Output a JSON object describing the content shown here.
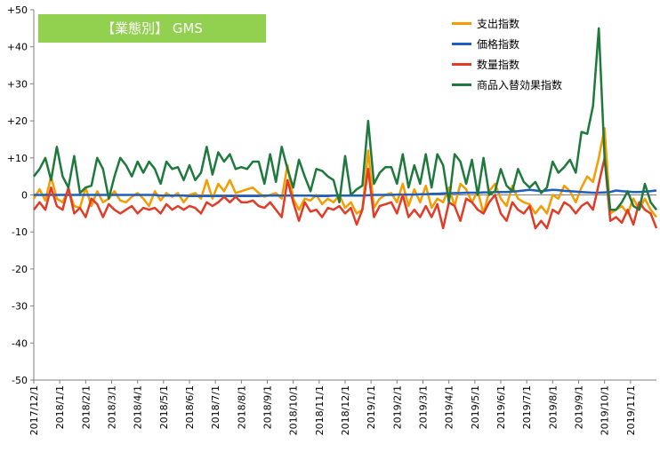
{
  "chart_data": {
    "type": "line",
    "title": "【業態別】 GMS",
    "ylim": [
      -50,
      50
    ],
    "yticks": [
      50,
      40,
      30,
      20,
      10,
      0,
      -10,
      -20,
      -30,
      -40,
      -50
    ],
    "ytick_labels": [
      "+50",
      "+40",
      "+30",
      "+20",
      "+10",
      "0",
      "-10",
      "-20",
      "-30",
      "-40",
      "-50"
    ],
    "xtick_labels": [
      "2017/12/1",
      "2018/1/1",
      "2018/2/1",
      "2018/3/1",
      "2018/4/1",
      "2018/5/1",
      "2018/6/1",
      "2018/7/1",
      "2018/8/1",
      "2018/9/1",
      "2018/10/1",
      "2018/11/1",
      "2018/12/1",
      "2019/1/1",
      "2019/2/1",
      "2019/3/1",
      "2019/4/1",
      "2019/5/1",
      "2019/6/1",
      "2019/7/1",
      "2019/8/1",
      "2019/9/1",
      "2019/10/1",
      "2019/11/1"
    ],
    "grid": false,
    "legend_position": "top-right",
    "series": [
      {
        "name": "支出指数",
        "color": "#f59d00",
        "values": [
          -1,
          1.5,
          -1.5,
          5,
          -1,
          -2,
          1.5,
          -3,
          -3.5,
          2,
          -3,
          1,
          -2,
          -1,
          1,
          -1.5,
          -2,
          -0.5,
          0.5,
          -1,
          -3,
          1,
          -1.5,
          0.5,
          -0.5,
          0.5,
          -2,
          0,
          0.5,
          -1,
          4,
          -1,
          3,
          1,
          4,
          0.5,
          1,
          1.5,
          2,
          0.5,
          -0.5,
          0,
          0.5,
          -1,
          8,
          -1,
          -4,
          -1,
          -1.5,
          0,
          -2.5,
          -1,
          -2,
          0,
          -3.5,
          -2,
          -5,
          -4,
          12,
          -3.5,
          -1,
          0,
          0.5,
          -2,
          3,
          -3,
          1.5,
          -2,
          2.5,
          -3.5,
          -1,
          -2,
          2,
          -3,
          3,
          1.5,
          -2,
          1,
          -5,
          1,
          3,
          -1,
          -3,
          2.5,
          -1,
          -2,
          -2.5,
          -5,
          -3,
          -5,
          0,
          -1,
          2.5,
          1,
          -2,
          2,
          5,
          3.5,
          10,
          18,
          -5,
          -4,
          -3,
          -5,
          -1,
          -4,
          -1,
          -4,
          -6
        ]
      },
      {
        "name": "価格指数",
        "color": "#1f5fbf",
        "values": [
          0,
          0,
          0,
          0,
          0,
          0,
          0,
          0,
          0,
          0,
          0,
          0,
          0,
          0,
          0,
          0,
          0,
          0,
          0,
          0,
          0,
          0,
          -0.2,
          -0.2,
          -0.2,
          -0.2,
          -0.2,
          -0.3,
          -0.3,
          -0.3,
          -0.3,
          -0.3,
          -0.3,
          -0.3,
          -0.3,
          -0.3,
          -0.3,
          -0.3,
          -0.3,
          -0.3,
          -0.2,
          -0.2,
          -0.2,
          -0.2,
          -0.2,
          -0.2,
          -0.2,
          -0.2,
          -0.2,
          -0.3,
          -0.3,
          -0.3,
          -0.2,
          -0.2,
          -0.2,
          -0.2,
          -0.2,
          -0.2,
          -0.1,
          0,
          0,
          0,
          0,
          0.1,
          0.1,
          0.1,
          0.1,
          0.2,
          0.2,
          0.3,
          0.3,
          0.4,
          0.4,
          0.5,
          0.5,
          0.6,
          0.6,
          0.6,
          0.7,
          0.7,
          0.8,
          0.8,
          0.8,
          0.9,
          1,
          1.2,
          1.4,
          1.2,
          1.0,
          1.2,
          1.4,
          1.3,
          1.1,
          1.0,
          0.9,
          0.8,
          0.7,
          0.6,
          0.6,
          0.7,
          0.8,
          1.2,
          1.0,
          0.9,
          0.8,
          0.8,
          0.9,
          1.0,
          1.2
        ]
      },
      {
        "name": "数量指数",
        "color": "#e03c28",
        "values": [
          -4,
          -2,
          -4,
          2,
          -3,
          -4,
          2,
          -5,
          -3.5,
          -6,
          -1,
          -2.5,
          -6,
          -2.5,
          -4,
          -5,
          -4,
          -3,
          -5,
          -3.5,
          -4,
          -3.5,
          -5,
          -2.5,
          -4,
          -3,
          -4,
          -3,
          -3.5,
          -5,
          -2,
          -3,
          -2,
          -0.5,
          -2,
          -0.5,
          -2,
          -2,
          -1.5,
          -3,
          -3.5,
          -2,
          -4,
          -6,
          4,
          -2,
          -7,
          -2,
          -4.5,
          -4,
          -6,
          -3.5,
          -4,
          -3,
          -5,
          -3.5,
          -8,
          -4,
          7,
          -6,
          -3,
          -2.5,
          -2,
          -5,
          0,
          -6,
          -4,
          -6,
          -3,
          -6,
          -2.5,
          -9,
          -2,
          -3,
          -7,
          -1,
          -2,
          -4,
          -5,
          -2,
          0,
          -5,
          -7,
          -2,
          -4,
          -5,
          -3,
          -9,
          -7,
          -9,
          -4,
          -5,
          -2,
          -3,
          -5,
          -3,
          -2,
          -4,
          3,
          10,
          -7,
          -6,
          -7.5,
          -4,
          -8,
          -2,
          -4,
          -5,
          -9
        ]
      },
      {
        "name": "商品入替効果指数",
        "color": "#1e7a3c",
        "values": [
          5,
          7,
          10,
          4,
          13,
          5,
          2,
          10.5,
          0.5,
          2,
          2.5,
          10,
          7,
          -1,
          5,
          10,
          8,
          5,
          9,
          6,
          9,
          7,
          3,
          9,
          7,
          7.5,
          4,
          8,
          4,
          6,
          13,
          5.5,
          11.5,
          9,
          11,
          7,
          7.5,
          7,
          9,
          9,
          3,
          11,
          3.5,
          13,
          7,
          2,
          9.5,
          5,
          1,
          7,
          6.5,
          5,
          4,
          -2,
          10.5,
          0,
          1.5,
          2.5,
          20,
          3,
          6,
          7.5,
          7.5,
          3,
          11,
          2,
          8,
          3,
          11,
          2,
          11,
          8,
          -2,
          11,
          9,
          3,
          9.5,
          0,
          10,
          0,
          1,
          7,
          2.5,
          1,
          7,
          3.5,
          2,
          3.5,
          0.5,
          2,
          9,
          6,
          7.5,
          9.5,
          6,
          17,
          16.5,
          24,
          45,
          10,
          -4,
          -4,
          -2,
          1,
          -3,
          -4,
          3,
          -2,
          -4
        ]
      }
    ]
  }
}
